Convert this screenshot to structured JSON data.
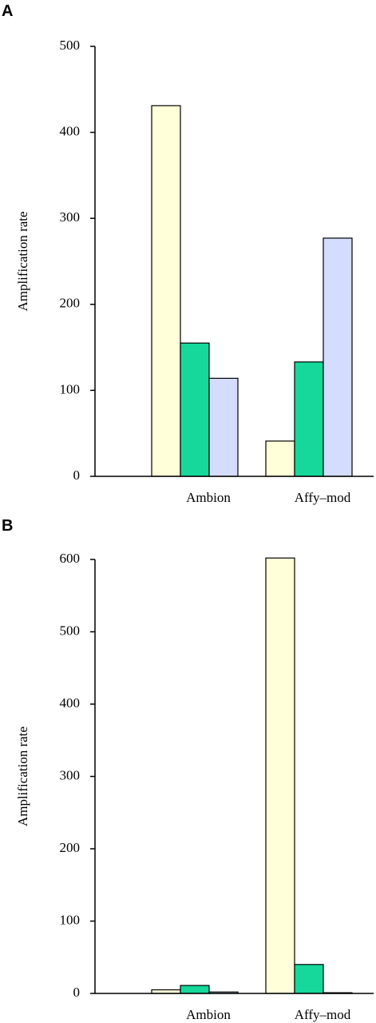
{
  "chart_data": [
    {
      "panel": "A",
      "type": "bar",
      "ylabel": "Amplification rate",
      "ylim": [
        0,
        500
      ],
      "yticks": [
        0,
        100,
        200,
        300,
        400,
        500
      ],
      "categories": [
        "Ambion",
        "Affy–mod"
      ],
      "series": [
        {
          "color": "#ffffd9",
          "values": [
            431,
            41
          ]
        },
        {
          "color": "#15d89a",
          "values": [
            155,
            133
          ]
        },
        {
          "color": "#d4dcff",
          "values": [
            114,
            277
          ]
        }
      ],
      "grid": false
    },
    {
      "panel": "B",
      "type": "bar",
      "ylabel": "Amplification rate",
      "ylim": [
        0,
        600
      ],
      "yticks": [
        0,
        100,
        200,
        300,
        400,
        500,
        600
      ],
      "categories": [
        "Ambion",
        "Affy–mod"
      ],
      "series": [
        {
          "color": "#ffffd9",
          "values": [
            5,
            602
          ]
        },
        {
          "color": "#15d89a",
          "values": [
            11,
            40
          ]
        },
        {
          "color": "#d4dcff",
          "values": [
            2,
            1
          ]
        }
      ],
      "grid": false
    }
  ]
}
